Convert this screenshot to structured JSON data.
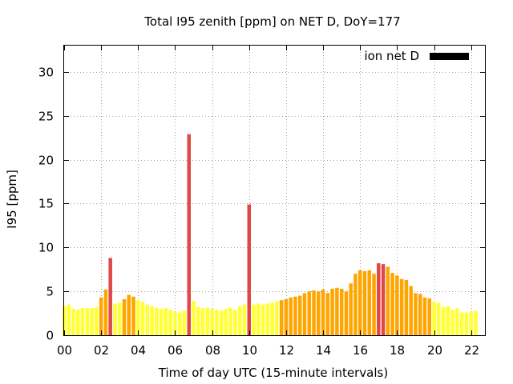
{
  "chart_data": {
    "type": "bar",
    "title": "Total I95 zenith [ppm] on NET D, DoY=177",
    "xlabel": "Time of day UTC (15-minute intervals)",
    "ylabel": "I95 [ppm]",
    "legend": {
      "label": "ion net D",
      "color": "#000000",
      "placement": "top-right"
    },
    "grid": true,
    "ylim": [
      0,
      33
    ],
    "xlim": [
      0,
      22.75
    ],
    "yticks": [
      0,
      5,
      10,
      15,
      20,
      25,
      30
    ],
    "xticks": [
      {
        "value": 0,
        "label": "00"
      },
      {
        "value": 2,
        "label": "02"
      },
      {
        "value": 4,
        "label": "04"
      },
      {
        "value": 6,
        "label": "06"
      },
      {
        "value": 8,
        "label": "08"
      },
      {
        "value": 10,
        "label": "10"
      },
      {
        "value": 12,
        "label": "12"
      },
      {
        "value": 14,
        "label": "14"
      },
      {
        "value": 16,
        "label": "16"
      },
      {
        "value": 18,
        "label": "18"
      },
      {
        "value": 20,
        "label": "20"
      },
      {
        "value": 22,
        "label": "22"
      }
    ],
    "color_scale": {
      "low": "#ffff33",
      "medium": "#ffa500",
      "high": "#e04848"
    },
    "x_start": 0,
    "x_step": 0.25,
    "values": [
      3.3,
      3.5,
      3.0,
      2.9,
      3.1,
      3.1,
      3.1,
      3.2,
      4.3,
      5.2,
      8.8,
      3.6,
      3.7,
      4.1,
      4.6,
      4.4,
      4.0,
      3.8,
      3.5,
      3.3,
      3.1,
      3.0,
      3.1,
      2.9,
      2.7,
      2.6,
      2.8,
      22.9,
      3.9,
      3.2,
      3.1,
      3.1,
      3.0,
      2.9,
      2.8,
      3.0,
      3.1,
      2.9,
      3.3,
      3.5,
      14.9,
      3.5,
      3.6,
      3.5,
      3.6,
      3.7,
      3.9,
      4.0,
      4.1,
      4.3,
      4.4,
      4.5,
      4.8,
      5.0,
      5.1,
      5.0,
      5.2,
      4.8,
      5.3,
      5.4,
      5.3,
      5.0,
      5.9,
      7.0,
      7.4,
      7.3,
      7.4,
      7.0,
      8.2,
      8.1,
      7.8,
      7.1,
      6.8,
      6.4,
      6.3,
      5.6,
      4.8,
      4.7,
      4.3,
      4.2,
      3.8,
      3.7,
      3.2,
      3.3,
      2.9,
      3.1,
      2.6,
      2.6,
      2.7,
      2.8
    ],
    "levels": [
      "low",
      "low",
      "low",
      "low",
      "low",
      "low",
      "low",
      "low",
      "medium",
      "medium",
      "high",
      "low",
      "low",
      "medium",
      "medium",
      "medium",
      "low",
      "low",
      "low",
      "low",
      "low",
      "low",
      "low",
      "low",
      "low",
      "low",
      "low",
      "high",
      "low",
      "low",
      "low",
      "low",
      "low",
      "low",
      "low",
      "low",
      "low",
      "low",
      "low",
      "low",
      "high",
      "low",
      "low",
      "low",
      "low",
      "low",
      "low",
      "medium",
      "medium",
      "medium",
      "medium",
      "medium",
      "medium",
      "medium",
      "medium",
      "medium",
      "medium",
      "medium",
      "medium",
      "medium",
      "medium",
      "medium",
      "medium",
      "medium",
      "medium",
      "medium",
      "medium",
      "medium",
      "high",
      "high",
      "medium",
      "medium",
      "medium",
      "medium",
      "medium",
      "medium",
      "medium",
      "medium",
      "medium",
      "medium",
      "low",
      "low",
      "low",
      "low",
      "low",
      "low",
      "low",
      "low",
      "low",
      "low"
    ]
  }
}
